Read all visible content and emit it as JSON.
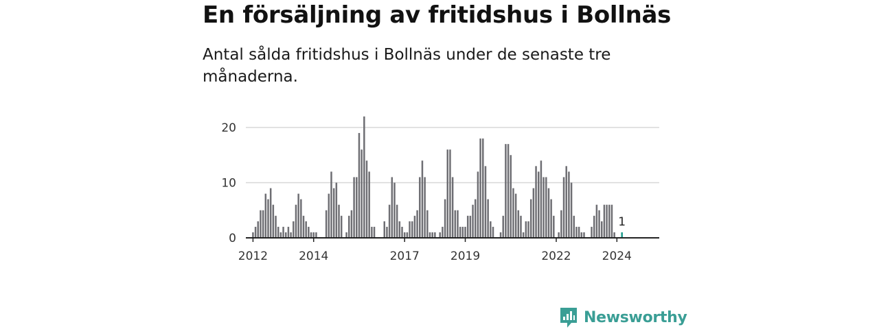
{
  "title": "En försäljning av fritidshus i Bollnäs",
  "subtitle": "Antal sålda fritidshus i Bollnäs under de senaste tre månaderna.",
  "brand": {
    "name": "Newsworthy",
    "icon": "newsworthy-logo-icon",
    "color": "#3a9e95"
  },
  "colors": {
    "bar": "#6e6e73",
    "highlight": "#1a9a8a",
    "grid": "#d8d8d8",
    "axis": "#222222"
  },
  "chart_data": {
    "type": "bar",
    "title": "",
    "xlabel": "",
    "ylabel": "",
    "ylim": [
      0,
      22
    ],
    "yticks": [
      0,
      10,
      20
    ],
    "grid": true,
    "x_tick_labels": [
      "2012",
      "2014",
      "2017",
      "2019",
      "2022",
      "2024"
    ],
    "x_start": "2012-01",
    "x_end": "2024-03",
    "values": [
      1,
      2,
      3,
      5,
      5,
      8,
      7,
      9,
      6,
      4,
      2,
      1,
      2,
      1,
      2,
      1,
      3,
      6,
      8,
      7,
      4,
      3,
      2,
      1,
      1,
      1,
      0,
      0,
      0,
      5,
      8,
      12,
      9,
      10,
      6,
      4,
      0,
      1,
      4,
      5,
      11,
      11,
      19,
      16,
      22,
      14,
      12,
      2,
      2,
      0,
      0,
      0,
      3,
      2,
      6,
      11,
      10,
      6,
      3,
      2,
      1,
      1,
      3,
      3,
      4,
      5,
      11,
      14,
      11,
      5,
      1,
      1,
      1,
      0,
      1,
      2,
      7,
      16,
      16,
      11,
      5,
      5,
      2,
      2,
      2,
      4,
      4,
      6,
      7,
      12,
      18,
      18,
      13,
      7,
      3,
      2,
      0,
      0,
      1,
      4,
      17,
      17,
      15,
      9,
      8,
      5,
      4,
      1,
      3,
      3,
      7,
      9,
      13,
      12,
      14,
      11,
      11,
      9,
      7,
      4,
      0,
      1,
      5,
      11,
      13,
      12,
      10,
      4,
      2,
      2,
      1,
      1,
      0,
      0,
      2,
      4,
      6,
      5,
      3,
      6,
      6,
      6,
      6,
      1,
      0,
      0,
      1
    ],
    "highlight": {
      "x": "2024-03",
      "value": 1,
      "label": "1"
    }
  }
}
